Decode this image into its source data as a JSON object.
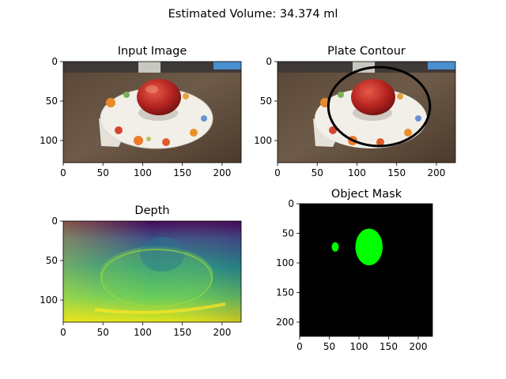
{
  "suptitle": "Estimated Volume: 34.374 ml",
  "colors": {
    "mask_object": "#00ff00",
    "mask_background": "#000000",
    "contour": "#000000",
    "viridis_low": "#440154",
    "viridis_high": "#fde725"
  },
  "chart_data": [
    {
      "type": "image",
      "title": "Input Image",
      "content": "photo of a red apple on a floral-patterned white plate on a wooden table",
      "xlim": [
        0,
        224
      ],
      "ylim": [
        128,
        0
      ],
      "xticks": [
        0,
        50,
        100,
        150,
        200
      ],
      "yticks": [
        0,
        50,
        100
      ]
    },
    {
      "type": "image",
      "title": "Plate Contour",
      "content": "same photo with a black elliptical contour fitted around the plate",
      "contour_ellipse": {
        "cx": 128,
        "cy": 57,
        "rx": 64,
        "ry": 50
      },
      "xlim": [
        0,
        224
      ],
      "ylim": [
        128,
        0
      ],
      "xticks": [
        0,
        50,
        100,
        150,
        200
      ],
      "yticks": [
        0,
        50,
        100
      ]
    },
    {
      "type": "heatmap",
      "title": "Depth",
      "colormap": "viridis",
      "xlim": [
        0,
        224
      ],
      "ylim": [
        128,
        0
      ],
      "xticks": [
        0,
        50,
        100,
        150,
        200
      ],
      "yticks": [
        0,
        50,
        100
      ]
    },
    {
      "type": "image",
      "title": "Object Mask",
      "content": "binary mask, green object blobs on black",
      "blobs": [
        {
          "cx": 117,
          "cy": 73,
          "rx": 23,
          "ry": 31
        },
        {
          "cx": 60,
          "cy": 73,
          "rx": 6,
          "ry": 8
        }
      ],
      "xlim": [
        0,
        224
      ],
      "ylim": [
        224,
        0
      ],
      "xticks": [
        0,
        50,
        100,
        150,
        200
      ],
      "yticks": [
        0,
        50,
        100,
        150,
        200
      ]
    }
  ]
}
